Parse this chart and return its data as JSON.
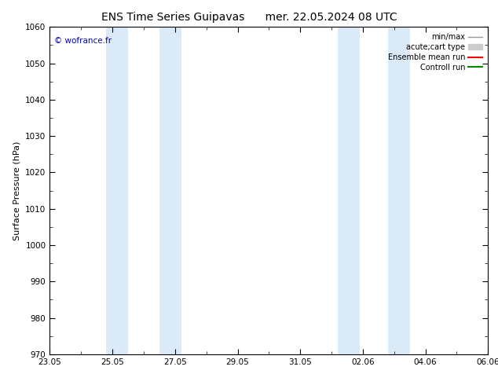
{
  "title_left": "ENS Time Series Guipavas",
  "title_right": "mer. 22.05.2024 08 UTC",
  "ylabel": "Surface Pressure (hPa)",
  "ylim": [
    970,
    1060
  ],
  "yticks": [
    970,
    980,
    990,
    1000,
    1010,
    1020,
    1030,
    1040,
    1050,
    1060
  ],
  "x_tick_labels": [
    "23.05",
    "25.05",
    "27.05",
    "29.05",
    "31.05",
    "02.06",
    "04.06",
    "06.06"
  ],
  "x_tick_positions": [
    0,
    2,
    4,
    6,
    8,
    10,
    12,
    14
  ],
  "x_total_days": 14,
  "blue_bands": [
    {
      "start": 1.8,
      "end": 2.5
    },
    {
      "start": 3.5,
      "end": 4.2
    },
    {
      "start": 9.2,
      "end": 9.9
    },
    {
      "start": 10.8,
      "end": 11.5
    }
  ],
  "band_color": "#daeaf7",
  "background_color": "#ffffff",
  "copyright_text": "© wofrance.fr",
  "copyright_color": "#0000cc",
  "legend_labels": [
    "min/max",
    "acute;cart type",
    "Ensemble mean run",
    "Controll run"
  ],
  "legend_colors": [
    "#999999",
    "#cccccc",
    "#ff0000",
    "#008800"
  ],
  "legend_lws": [
    1.0,
    6.0,
    1.5,
    1.5
  ],
  "title_fontsize": 10,
  "axis_fontsize": 8,
  "tick_fontsize": 7.5
}
